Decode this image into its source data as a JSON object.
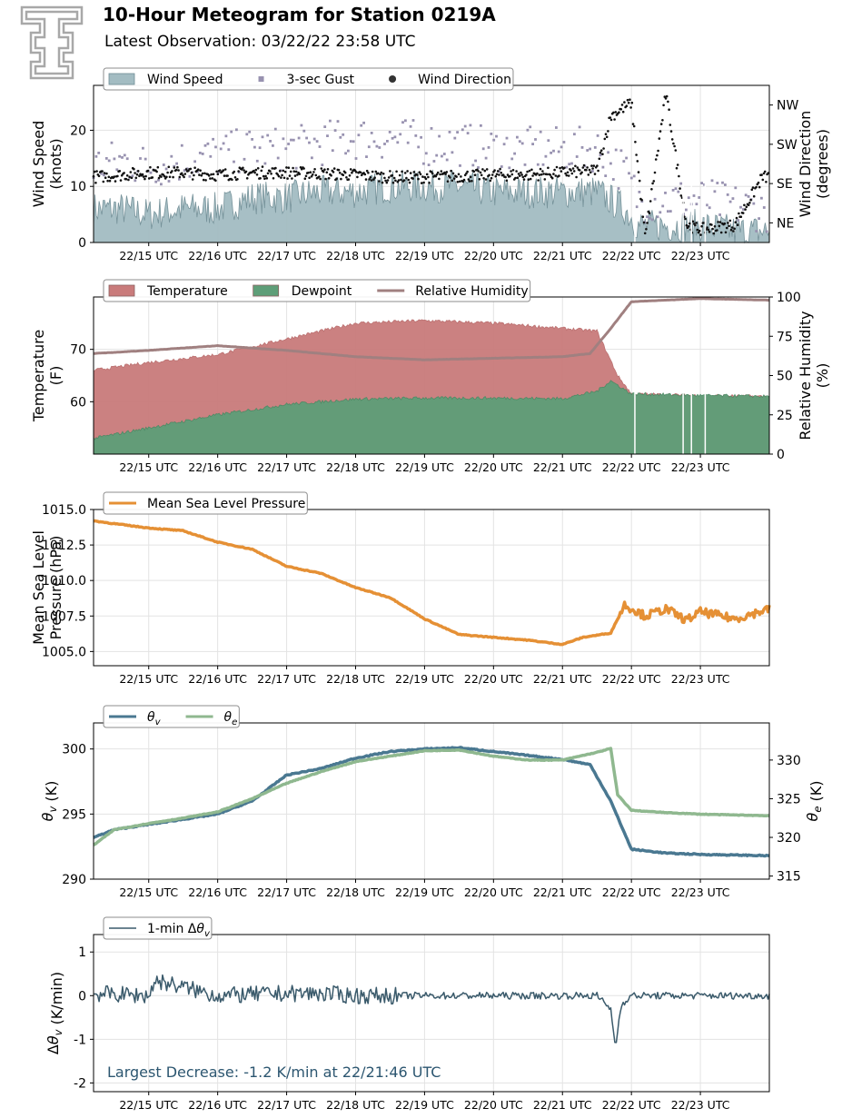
{
  "header": {
    "title": "10-Hour Meteogram for Station 0219A",
    "subtitle": "Latest Observation: 03/22/22 23:58 UTC"
  },
  "chart_data": [
    {
      "type": "area",
      "ylabel": "Wind Speed\n(knots)",
      "y2label": "Wind Direction\n(degrees)",
      "ylim": [
        0,
        28
      ],
      "yticks": [
        0,
        10,
        20
      ],
      "y2lim": [
        0,
        360
      ],
      "y2ticks": [
        {
          "v": 45,
          "label": "NE"
        },
        {
          "v": 135,
          "label": "SE"
        },
        {
          "v": 225,
          "label": "SW"
        },
        {
          "v": 315,
          "label": "NW"
        }
      ],
      "x_ticks": [
        "22/15 UTC",
        "22/16 UTC",
        "22/17 UTC",
        "22/18 UTC",
        "22/19 UTC",
        "22/20 UTC",
        "22/21 UTC",
        "22/22 UTC",
        "22/23 UTC"
      ],
      "grid": true,
      "legend_position": "top-left",
      "series": [
        {
          "name": "Wind Speed",
          "kind": "area",
          "color": "#a3bcc2",
          "points": [
            [
              14.2,
              6
            ],
            [
              14.6,
              6
            ],
            [
              15.0,
              5
            ],
            [
              15.5,
              6
            ],
            [
              16.0,
              6
            ],
            [
              16.5,
              8
            ],
            [
              17.0,
              8
            ],
            [
              17.5,
              9
            ],
            [
              18.0,
              9
            ],
            [
              18.5,
              10
            ],
            [
              19.0,
              10
            ],
            [
              19.5,
              10
            ],
            [
              20.0,
              9
            ],
            [
              20.5,
              9
            ],
            [
              21.0,
              9
            ],
            [
              21.5,
              9
            ],
            [
              21.9,
              6
            ],
            [
              22.1,
              3
            ],
            [
              22.6,
              3
            ],
            [
              23.0,
              3
            ],
            [
              23.5,
              2
            ],
            [
              24.0,
              2
            ]
          ]
        },
        {
          "name": "3-sec Gust",
          "kind": "scatter",
          "color": "#9892b0",
          "points": [
            [
              14.2,
              12
            ],
            [
              14.6,
              13
            ],
            [
              15.0,
              12
            ],
            [
              15.5,
              13
            ],
            [
              16.0,
              14
            ],
            [
              16.5,
              15
            ],
            [
              17.0,
              15
            ],
            [
              17.5,
              16
            ],
            [
              18.0,
              17
            ],
            [
              18.5,
              17
            ],
            [
              19.0,
              16
            ],
            [
              19.5,
              16
            ],
            [
              20.0,
              15
            ],
            [
              20.5,
              15
            ],
            [
              21.0,
              15
            ],
            [
              21.5,
              15
            ],
            [
              21.9,
              11
            ],
            [
              22.1,
              6
            ],
            [
              22.6,
              6
            ],
            [
              23.0,
              6
            ],
            [
              23.5,
              5
            ],
            [
              24.0,
              4
            ]
          ]
        },
        {
          "name": "Wind Direction",
          "kind": "scatter",
          "color": "#111111",
          "points": [
            [
              14.2,
              150
            ],
            [
              14.6,
              155
            ],
            [
              15.0,
              160
            ],
            [
              15.5,
              160
            ],
            [
              16.0,
              155
            ],
            [
              16.5,
              160
            ],
            [
              17.0,
              160
            ],
            [
              17.5,
              158
            ],
            [
              18.0,
              155
            ],
            [
              18.5,
              150
            ],
            [
              19.0,
              150
            ],
            [
              19.5,
              152
            ],
            [
              20.0,
              155
            ],
            [
              20.5,
              155
            ],
            [
              21.0,
              160
            ],
            [
              21.5,
              165
            ],
            [
              21.7,
              290
            ],
            [
              22.0,
              320
            ],
            [
              22.2,
              10
            ],
            [
              22.5,
              340
            ],
            [
              22.8,
              40
            ],
            [
              23.0,
              30
            ],
            [
              23.5,
              40
            ],
            [
              23.9,
              150
            ]
          ]
        }
      ]
    },
    {
      "type": "area",
      "ylabel": "Temperature\n(F)",
      "y2label": "Relative Humidity\n(%)",
      "ylim": [
        50,
        80
      ],
      "yticks": [
        60,
        70
      ],
      "y2lim": [
        0,
        100
      ],
      "y2ticks": [
        0,
        25,
        50,
        75,
        100
      ],
      "x_ticks": [
        "22/15 UTC",
        "22/16 UTC",
        "22/17 UTC",
        "22/18 UTC",
        "22/19 UTC",
        "22/20 UTC",
        "22/21 UTC",
        "22/22 UTC",
        "22/23 UTC"
      ],
      "grid": true,
      "legend_position": "top-left",
      "series": [
        {
          "name": "Temperature",
          "kind": "area",
          "axis": "left",
          "color": "#c97b7b",
          "points": [
            [
              14.2,
              66
            ],
            [
              15.0,
              67.5
            ],
            [
              16.0,
              69
            ],
            [
              17.0,
              72
            ],
            [
              18.0,
              75
            ],
            [
              19.0,
              75.5
            ],
            [
              20.0,
              75
            ],
            [
              21.0,
              74
            ],
            [
              21.5,
              73.5
            ],
            [
              21.8,
              65
            ],
            [
              22.0,
              61.5
            ],
            [
              23.0,
              61.2
            ],
            [
              24.0,
              61
            ]
          ]
        },
        {
          "name": "Dewpoint",
          "kind": "area",
          "axis": "left",
          "color": "#5e9e78",
          "points": [
            [
              14.2,
              53
            ],
            [
              15.0,
              55
            ],
            [
              16.0,
              57.5
            ],
            [
              17.0,
              59.5
            ],
            [
              18.0,
              60.5
            ],
            [
              19.0,
              60.7
            ],
            [
              20.0,
              60.7
            ],
            [
              21.0,
              60.6
            ],
            [
              21.5,
              62
            ],
            [
              21.7,
              64
            ],
            [
              22.0,
              61.5
            ],
            [
              23.0,
              61.2
            ],
            [
              24.0,
              61
            ]
          ]
        },
        {
          "name": "Relative Humidity",
          "kind": "line",
          "axis": "right",
          "color": "#a08080",
          "points": [
            [
              14.2,
              64
            ],
            [
              15.0,
              66
            ],
            [
              16.0,
              69
            ],
            [
              17.0,
              66
            ],
            [
              18.0,
              62
            ],
            [
              19.0,
              60
            ],
            [
              20.0,
              61
            ],
            [
              21.0,
              62
            ],
            [
              21.4,
              64
            ],
            [
              21.7,
              80
            ],
            [
              22.0,
              97
            ],
            [
              23.0,
              99
            ],
            [
              24.0,
              98
            ]
          ]
        }
      ]
    },
    {
      "type": "line",
      "ylabel": "Mean Sea Level\nPressure (hPa)",
      "ylim": [
        1004,
        1015
      ],
      "yticks": [
        1005.0,
        1007.5,
        1010.0,
        1012.5,
        1015.0
      ],
      "x_ticks": [
        "22/15 UTC",
        "22/16 UTC",
        "22/17 UTC",
        "22/18 UTC",
        "22/19 UTC",
        "22/20 UTC",
        "22/21 UTC",
        "22/22 UTC",
        "22/23 UTC"
      ],
      "grid": true,
      "legend_position": "top-left",
      "series": [
        {
          "name": "Mean Sea Level Pressure",
          "color": "#e59035",
          "points": [
            [
              14.2,
              1014.2
            ],
            [
              14.5,
              1014.0
            ],
            [
              15.0,
              1013.7
            ],
            [
              15.5,
              1013.5
            ],
            [
              16.0,
              1012.7
            ],
            [
              16.5,
              1012.2
            ],
            [
              17.0,
              1011.0
            ],
            [
              17.5,
              1010.5
            ],
            [
              18.0,
              1009.5
            ],
            [
              18.5,
              1008.8
            ],
            [
              19.0,
              1007.3
            ],
            [
              19.5,
              1006.2
            ],
            [
              20.0,
              1006.0
            ],
            [
              20.5,
              1005.8
            ],
            [
              21.0,
              1005.5
            ],
            [
              21.3,
              1006.0
            ],
            [
              21.7,
              1006.3
            ],
            [
              21.9,
              1008.3
            ],
            [
              22.2,
              1007.5
            ],
            [
              22.5,
              1008.0
            ],
            [
              22.8,
              1007.2
            ],
            [
              23.0,
              1007.8
            ],
            [
              23.5,
              1007.3
            ],
            [
              24.0,
              1008.0
            ]
          ]
        }
      ]
    },
    {
      "type": "line",
      "ylabel": "θv (K)",
      "y2label": "θe (K)",
      "ylim": [
        290,
        302
      ],
      "yticks": [
        290,
        295,
        300
      ],
      "y2lim": [
        314.6,
        334.8
      ],
      "y2ticks": [
        315,
        320,
        325,
        330
      ],
      "x_ticks": [
        "22/15 UTC",
        "22/16 UTC",
        "22/17 UTC",
        "22/18 UTC",
        "22/19 UTC",
        "22/20 UTC",
        "22/21 UTC",
        "22/22 UTC",
        "22/23 UTC"
      ],
      "grid": true,
      "legend_position": "top-left",
      "series": [
        {
          "name": "θv",
          "axis": "left",
          "color": "#4a7891",
          "points": [
            [
              14.2,
              293.2
            ],
            [
              14.5,
              293.8
            ],
            [
              15.0,
              294.2
            ],
            [
              15.5,
              294.6
            ],
            [
              16.0,
              295.0
            ],
            [
              16.5,
              296.0
            ],
            [
              17.0,
              298.0
            ],
            [
              17.5,
              298.5
            ],
            [
              18.0,
              299.3
            ],
            [
              18.5,
              299.8
            ],
            [
              19.0,
              300.0
            ],
            [
              19.5,
              300.1
            ],
            [
              20.0,
              299.8
            ],
            [
              20.5,
              299.5
            ],
            [
              21.0,
              299.2
            ],
            [
              21.4,
              298.8
            ],
            [
              21.7,
              296.0
            ],
            [
              22.0,
              292.3
            ],
            [
              22.5,
              292.0
            ],
            [
              23.0,
              291.9
            ],
            [
              24.0,
              291.8
            ]
          ]
        },
        {
          "name": "θe",
          "axis": "right",
          "color": "#8fb88f",
          "points": [
            [
              14.2,
              319.0
            ],
            [
              14.5,
              321.0
            ],
            [
              15.0,
              321.8
            ],
            [
              15.5,
              322.5
            ],
            [
              16.0,
              323.3
            ],
            [
              16.5,
              325.0
            ],
            [
              17.0,
              327.0
            ],
            [
              17.5,
              328.5
            ],
            [
              18.0,
              329.8
            ],
            [
              18.5,
              330.5
            ],
            [
              19.0,
              331.2
            ],
            [
              19.5,
              331.3
            ],
            [
              20.0,
              330.5
            ],
            [
              20.5,
              330.0
            ],
            [
              21.0,
              330.0
            ],
            [
              21.5,
              331.0
            ],
            [
              21.7,
              331.5
            ],
            [
              21.8,
              325.5
            ],
            [
              22.0,
              323.5
            ],
            [
              22.5,
              323.2
            ],
            [
              23.0,
              323.0
            ],
            [
              24.0,
              322.8
            ]
          ]
        }
      ]
    },
    {
      "type": "line",
      "ylabel": "Δθv (K/min)",
      "ylim": [
        -2.2,
        1.4
      ],
      "yticks": [
        -2,
        -1,
        0,
        1
      ],
      "x_ticks": [
        "22/15 UTC",
        "22/16 UTC",
        "22/17 UTC",
        "22/18 UTC",
        "22/19 UTC",
        "22/20 UTC",
        "22/21 UTC",
        "22/22 UTC",
        "22/23 UTC"
      ],
      "grid": true,
      "legend_position": "top-left",
      "annotation": "Largest Decrease: -1.2 K/min at 22/21:46 UTC",
      "series": [
        {
          "name": "1-min Δθv",
          "color": "#3a5a6b",
          "points": [
            [
              14.2,
              0.05
            ],
            [
              15.0,
              0.0
            ],
            [
              15.1,
              0.35
            ],
            [
              16.0,
              0.0
            ],
            [
              17.0,
              0.05
            ],
            [
              17.5,
              0.05
            ],
            [
              18.0,
              0.0
            ],
            [
              18.5,
              0.0
            ],
            [
              19.0,
              0.0
            ],
            [
              20.0,
              0.0
            ],
            [
              21.0,
              0.0
            ],
            [
              21.5,
              0.0
            ],
            [
              21.7,
              -0.3
            ],
            [
              21.77,
              -1.2
            ],
            [
              21.85,
              -0.2
            ],
            [
              22.0,
              0.0
            ],
            [
              23.0,
              0.0
            ],
            [
              24.0,
              0.0
            ]
          ]
        }
      ]
    }
  ]
}
